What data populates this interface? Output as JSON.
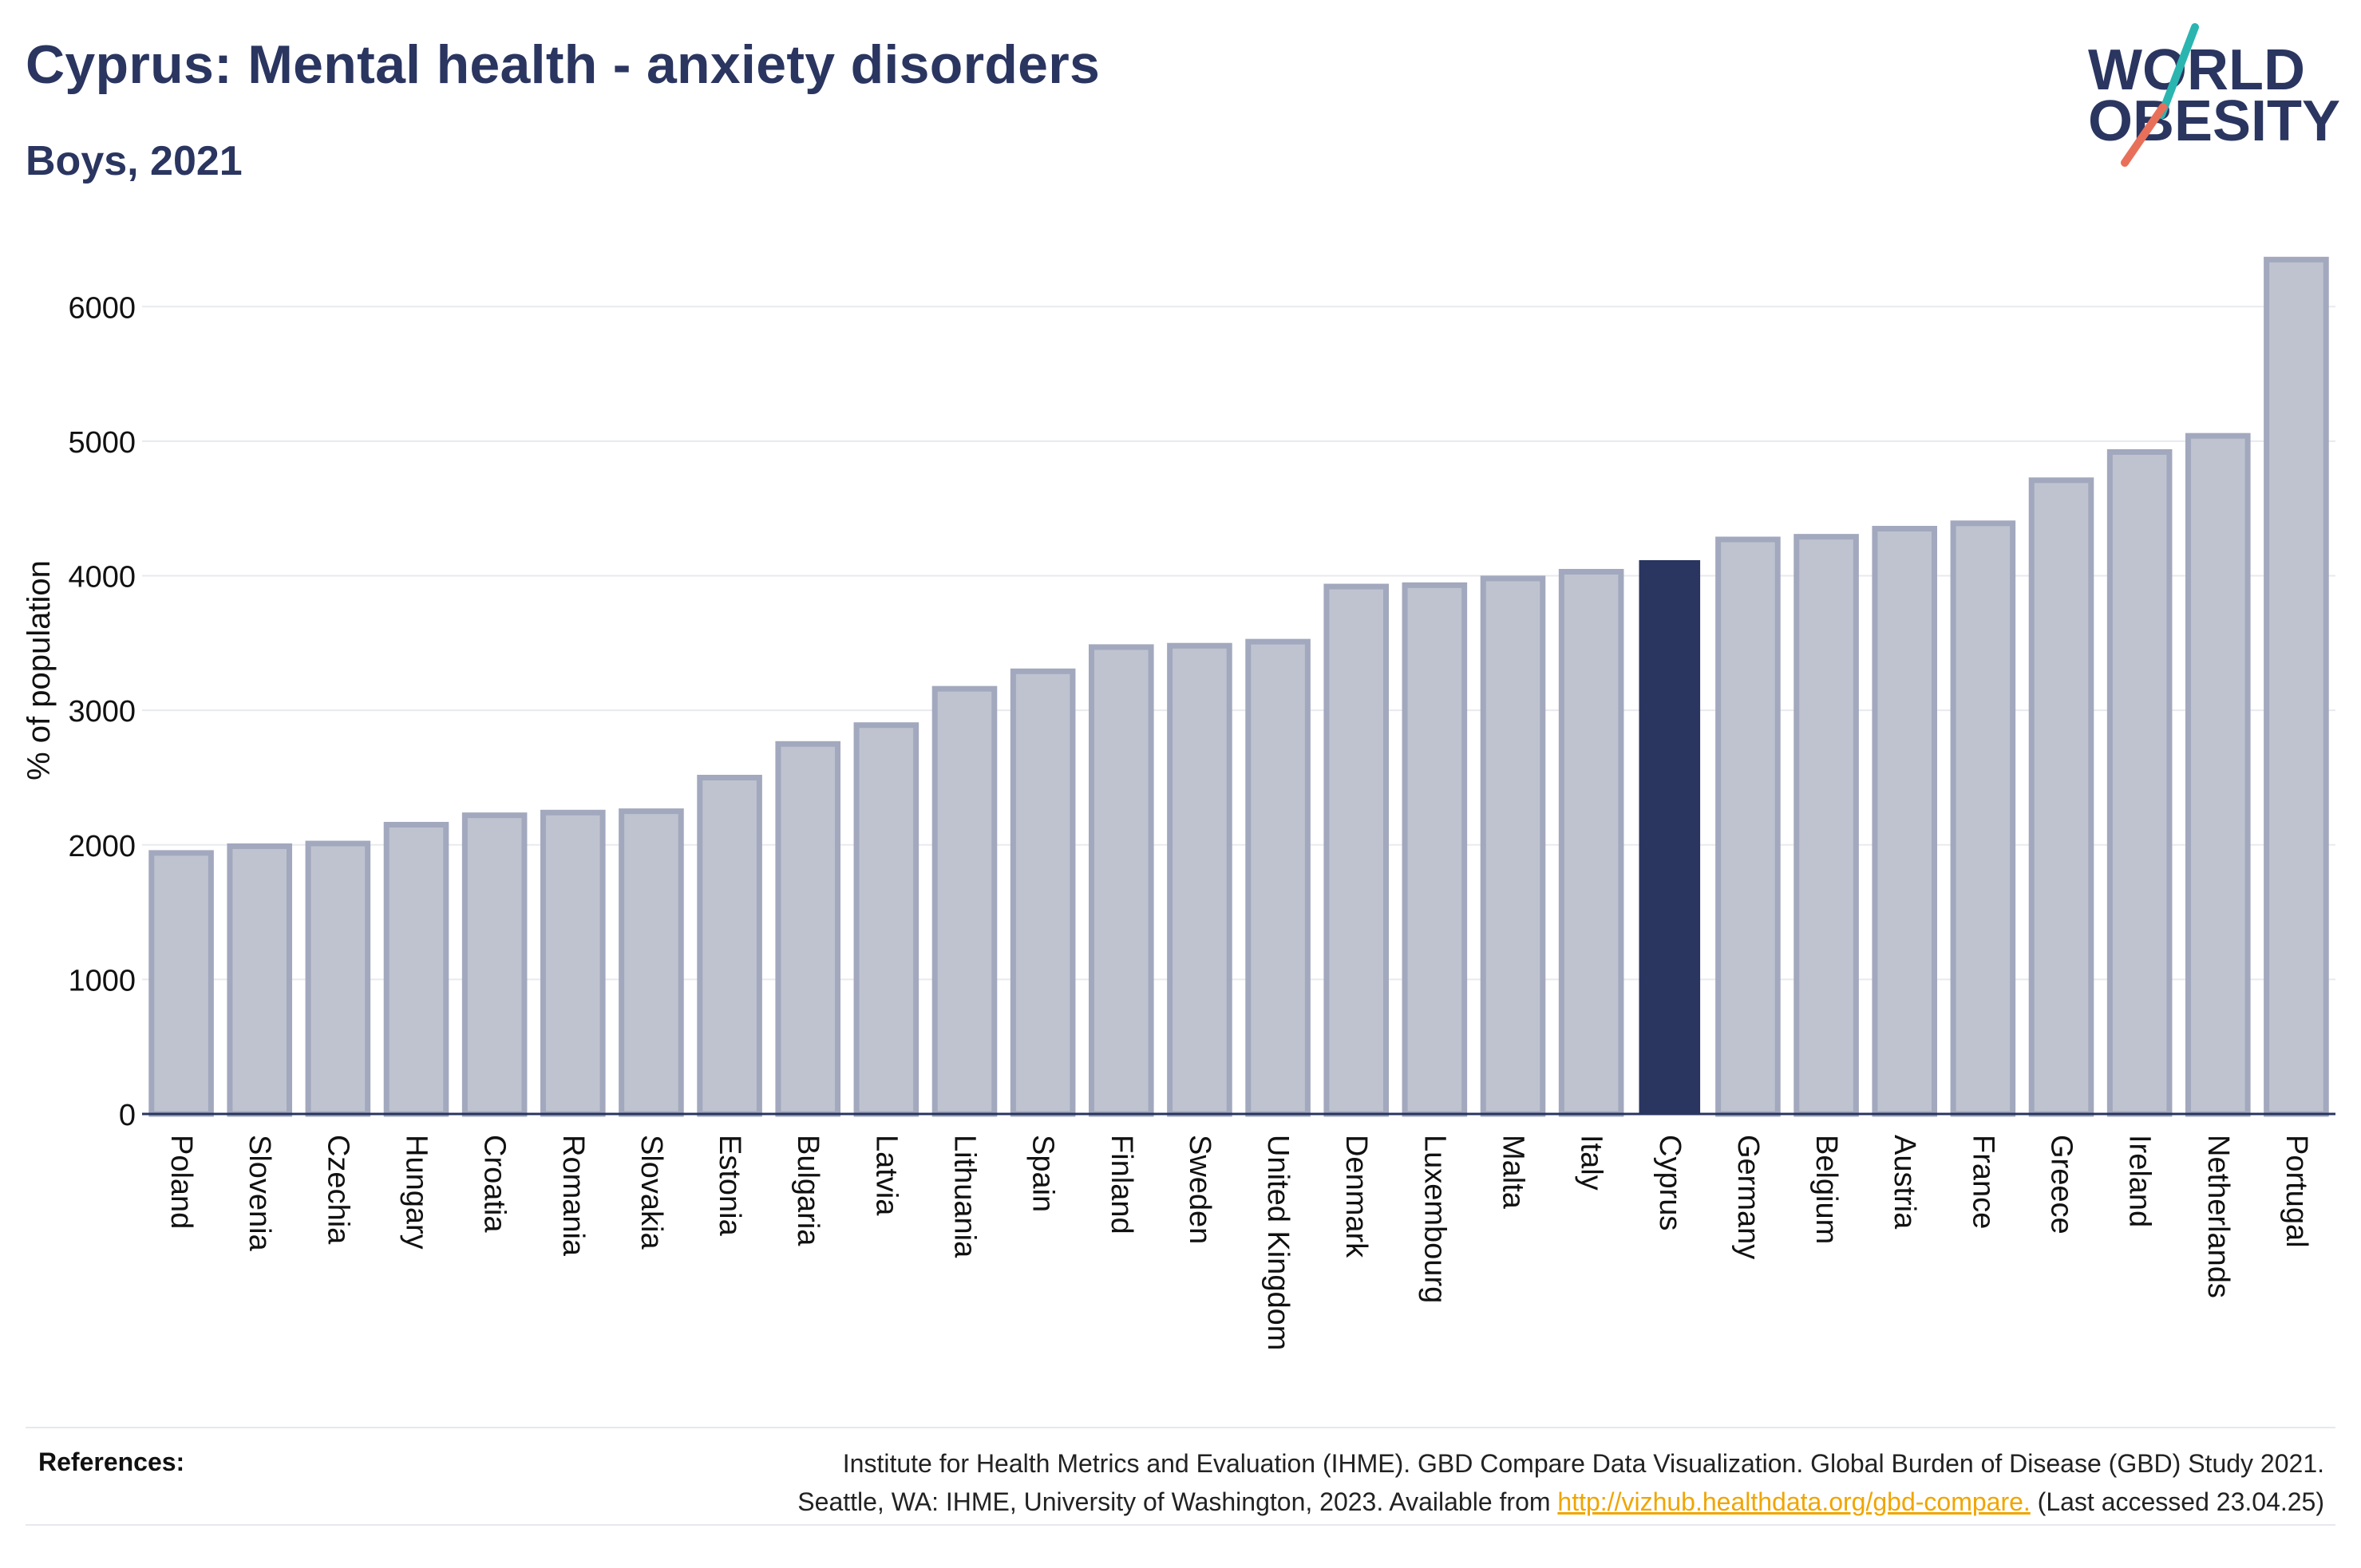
{
  "header": {
    "title": "Cyprus: Mental health - anxiety disorders",
    "subtitle": "Boys, 2021"
  },
  "logo": {
    "text_line1": "WORLD",
    "text_line2": "OBESITY",
    "colors": {
      "text": "#2a3560",
      "slash_top": "#2ab5b0",
      "slash_bottom": "#e8705a"
    }
  },
  "colors": {
    "bar_default": "#bfc3d0",
    "bar_default_outline": "#a2a8bd",
    "bar_highlight": "#2a3560",
    "grid": "#e8eaef",
    "axis": "#2a3560",
    "link": "#f0a500"
  },
  "chart_data": {
    "type": "bar",
    "title": "Cyprus: Mental health - anxiety disorders",
    "subtitle": "Boys, 2021",
    "xlabel": "",
    "ylabel": "% of population",
    "ylim": [
      0,
      6500
    ],
    "yticks": [
      0,
      1000,
      2000,
      3000,
      4000,
      5000,
      6000
    ],
    "grid": true,
    "highlight": "Cyprus",
    "categories": [
      "Poland",
      "Slovenia",
      "Czechia",
      "Hungary",
      "Croatia",
      "Romania",
      "Slovakia",
      "Estonia",
      "Bulgaria",
      "Latvia",
      "Lithuania",
      "Spain",
      "Finland",
      "Sweden",
      "United Kingdom",
      "Denmark",
      "Luxembourg",
      "Malta",
      "Italy",
      "Cyprus",
      "Germany",
      "Belgium",
      "Austria",
      "France",
      "Greece",
      "Ireland",
      "Netherlands",
      "Portugal"
    ],
    "values": [
      1940,
      1990,
      2010,
      2150,
      2220,
      2240,
      2250,
      2500,
      2750,
      2890,
      3160,
      3290,
      3470,
      3480,
      3510,
      3920,
      3930,
      3980,
      4030,
      4110,
      4270,
      4290,
      4350,
      4390,
      4710,
      4920,
      5040,
      6350
    ]
  },
  "references": {
    "label": "References:",
    "line1": "Institute for Health Metrics and Evaluation (IHME). GBD Compare Data Visualization. Global Burden of Disease (GBD) Study 2021.",
    "line2_prefix": "Seattle, WA: IHME, University of Washington, 2023. Available from ",
    "link_text": "http://vizhub.healthdata.org/gbd-compare.",
    "line2_suffix": " (Last accessed 23.04.25)"
  }
}
